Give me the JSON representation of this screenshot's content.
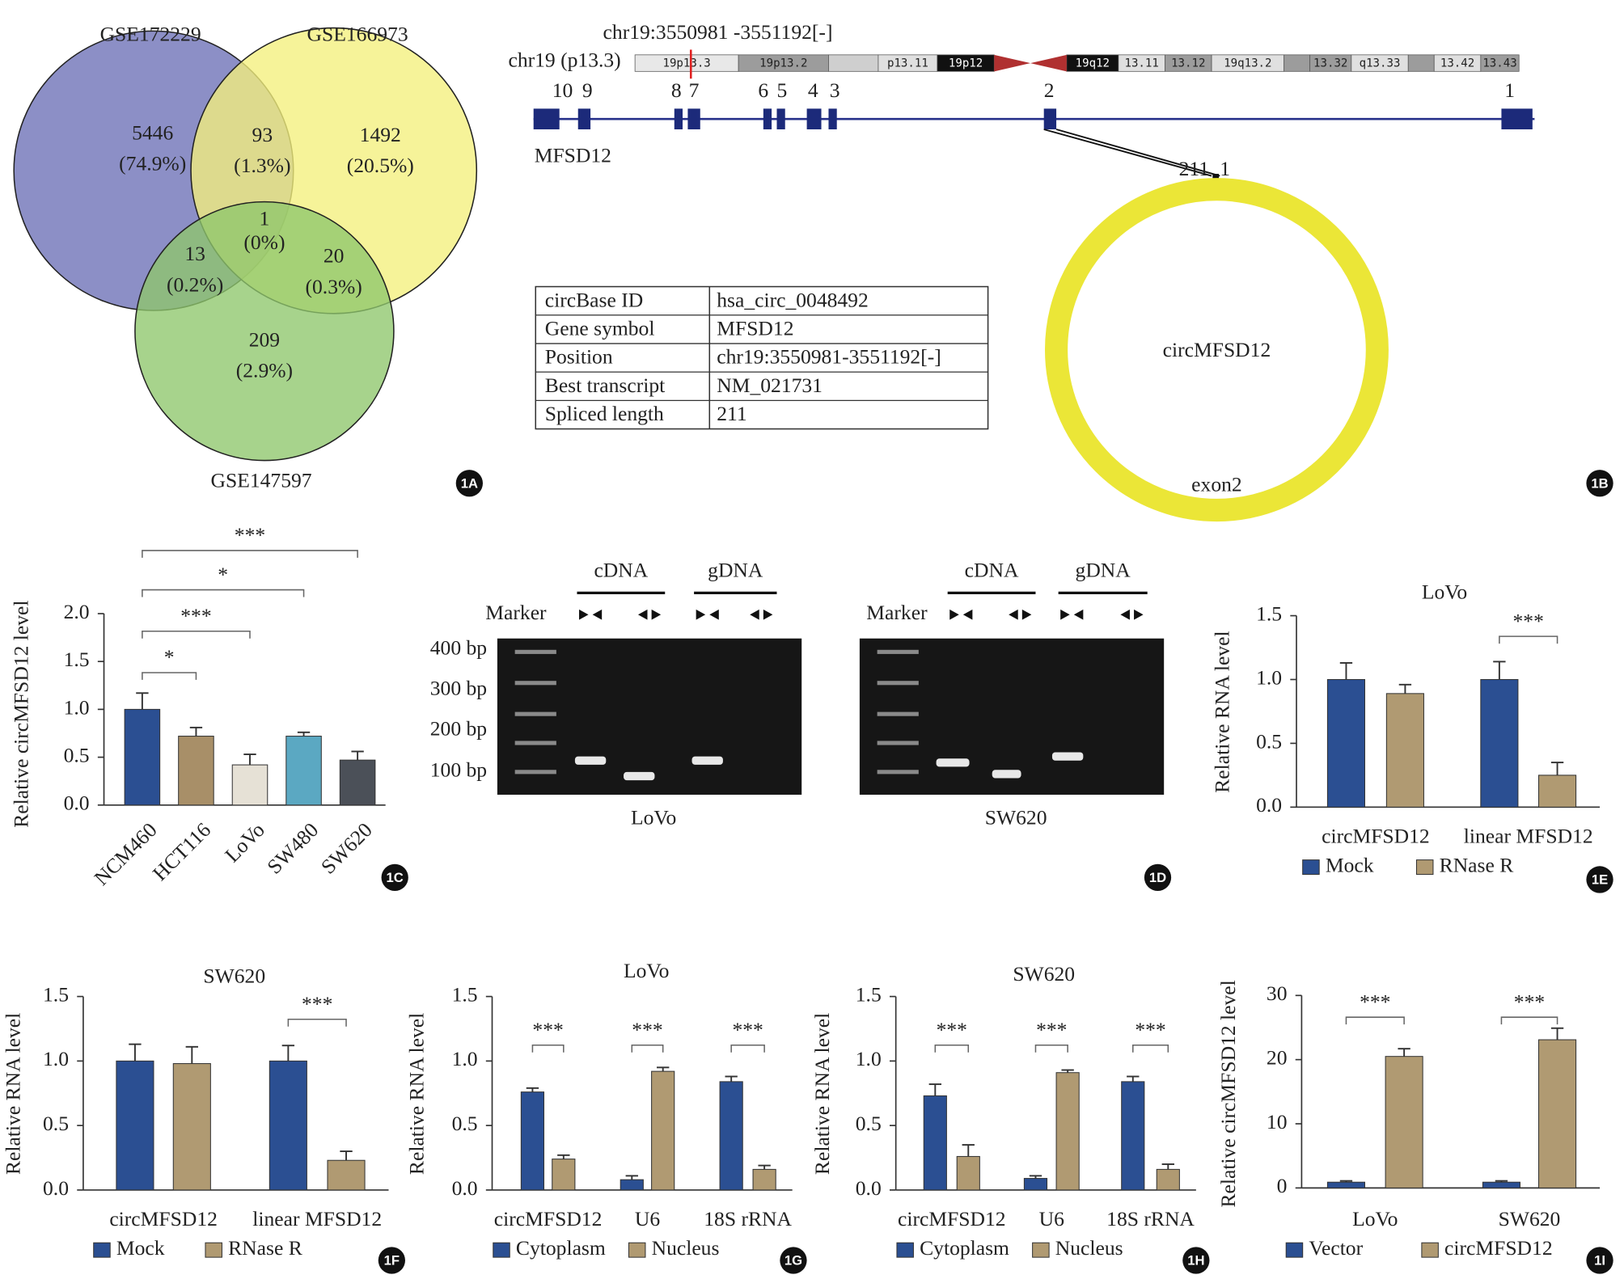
{
  "chart_data": [
    {
      "type": "venn",
      "sets": [
        {
          "name": "GSE172229",
          "color": "#6b6fb6"
        },
        {
          "name": "GSE166973",
          "color": "#f3ef7c"
        },
        {
          "name": "GSE147597",
          "color": "#8ec76c"
        }
      ],
      "counts": [
        5446,
        93,
        1492,
        1,
        13,
        20,
        209
      ],
      "shares": [
        "(74.9%)",
        "(1.3%)",
        "(20.5%)",
        "(0%)",
        "(0.2%)",
        "(0.3%)",
        "(2.9%)"
      ]
    },
    {
      "type": "bar",
      "ylabel": "Relative circMFSD12 level",
      "categories": [
        "NCM460",
        "HCT116",
        "LoVo",
        "SW480",
        "SW620"
      ],
      "values": [
        1.0,
        0.72,
        0.42,
        0.72,
        0.47
      ],
      "errors": [
        0.17,
        0.09,
        0.11,
        0.04,
        0.09
      ],
      "colors": [
        "#2b4f92",
        "#a88f68",
        "#e6e1d6",
        "#5ba8c2",
        "#4b5058"
      ],
      "significance": [
        null,
        "*",
        "***",
        "*",
        "***"
      ],
      "ylim": [
        0,
        2
      ],
      "yticks": [
        {
          "value": 0,
          "label": "0.0"
        },
        0.5,
        {
          "value": 1,
          "label": "1.0"
        },
        1.5,
        {
          "value": 2,
          "label": "2.0"
        }
      ]
    },
    {
      "type": "grouped-bar",
      "title": "LoVo",
      "ylabel": "Relative RNA level",
      "categories": [
        "circMFSD12",
        "linear MFSD12"
      ],
      "series": [
        {
          "name": "Mock",
          "color": "#2b4f92",
          "values": [
            1.0,
            1.0
          ],
          "errors": [
            0.13,
            0.14
          ]
        },
        {
          "name": "RNase R",
          "color": "#b09a72",
          "values": [
            0.89,
            0.25
          ],
          "errors": [
            0.07,
            0.1
          ]
        }
      ],
      "significance": [
        null,
        "***"
      ],
      "ylim": [
        0,
        1.5
      ],
      "yticks": [
        {
          "value": 0,
          "label": "0.0"
        },
        0.5,
        {
          "value": 1,
          "label": "1.0"
        },
        1.5
      ]
    },
    {
      "type": "grouped-bar",
      "title": "SW620",
      "ylabel": "Relative RNA level",
      "categories": [
        "circMFSD12",
        "linear MFSD12"
      ],
      "series": [
        {
          "name": "Mock",
          "color": "#2b4f92",
          "values": [
            1.0,
            1.0
          ],
          "errors": [
            0.13,
            0.12
          ]
        },
        {
          "name": "RNase R",
          "color": "#b09a72",
          "values": [
            0.98,
            0.23
          ],
          "errors": [
            0.13,
            0.07
          ]
        }
      ],
      "significance": [
        null,
        "***"
      ],
      "ylim": [
        0,
        1.5
      ],
      "yticks": [
        {
          "value": 0,
          "label": "0.0"
        },
        0.5,
        {
          "value": 1,
          "label": "1.0"
        },
        1.5
      ]
    },
    {
      "type": "grouped-bar",
      "title": "LoVo",
      "ylabel": "Relative RNA level",
      "categories": [
        "circMFSD12",
        "U6",
        "18S rRNA"
      ],
      "series": [
        {
          "name": "Cytoplasm",
          "color": "#2b4f92",
          "values": [
            0.76,
            0.08,
            0.84
          ],
          "errors": [
            0.03,
            0.03,
            0.04
          ]
        },
        {
          "name": "Nucleus",
          "color": "#b09a72",
          "values": [
            0.24,
            0.92,
            0.16
          ],
          "errors": [
            0.03,
            0.03,
            0.03
          ]
        }
      ],
      "significance": [
        "***",
        "***",
        "***"
      ],
      "ylim": [
        0,
        1.5
      ],
      "yticks": [
        {
          "value": 0,
          "label": "0.0"
        },
        0.5,
        {
          "value": 1,
          "label": "1.0"
        },
        1.5
      ]
    },
    {
      "type": "grouped-bar",
      "title": "SW620",
      "ylabel": "Relative RNA level",
      "categories": [
        "circMFSD12",
        "U6",
        "18S rRNA"
      ],
      "series": [
        {
          "name": "Cytoplasm",
          "color": "#2b4f92",
          "values": [
            0.73,
            0.09,
            0.84
          ],
          "errors": [
            0.09,
            0.02,
            0.04
          ]
        },
        {
          "name": "Nucleus",
          "color": "#b09a72",
          "values": [
            0.26,
            0.91,
            0.16
          ],
          "errors": [
            0.09,
            0.02,
            0.04
          ]
        }
      ],
      "significance": [
        "***",
        "***",
        "***"
      ],
      "ylim": [
        0,
        1.5
      ],
      "yticks": [
        {
          "value": 0,
          "label": "0.0"
        },
        0.5,
        {
          "value": 1,
          "label": "1.0"
        },
        1.5
      ]
    },
    {
      "type": "grouped-bar",
      "ylabel": "Relative circMFSD12 level",
      "categories": [
        "LoVo",
        "SW620"
      ],
      "series": [
        {
          "name": "Vector",
          "color": "#2b4f92",
          "values": [
            0.9,
            0.9
          ],
          "errors": [
            0.2,
            0.2
          ]
        },
        {
          "name": "circMFSD12",
          "color": "#b09a72",
          "values": [
            20.5,
            23.1
          ],
          "errors": [
            1.2,
            1.8
          ]
        }
      ],
      "significance": [
        "***",
        "***"
      ],
      "ylim": [
        0,
        30
      ],
      "yticks": [
        0,
        10,
        20,
        30
      ]
    }
  ],
  "gene_panel": {
    "coord": "chr19:3550981 -3551192[-]",
    "chrom": "chr19 (p13.3)",
    "bands": [
      "19p13.3",
      "19p13.2",
      "p13.11",
      "19p12",
      "19q12",
      "13.11",
      "13.12",
      "19q13.2",
      "13.32",
      "q13.33",
      "13.42",
      "13.43"
    ],
    "exons": [
      "10",
      "9",
      "8",
      "7",
      "6",
      "5",
      "4",
      "3",
      "2",
      "1"
    ],
    "gene": "MFSD12",
    "circ_ends": [
      "211",
      "1"
    ],
    "circ_name": "circMFSD12",
    "exon_label": "exon2",
    "table": {
      "rows": [
        [
          "circBase ID",
          "hsa_circ_0048492"
        ],
        [
          "Gene symbol",
          "MFSD12"
        ],
        [
          "Position",
          "chr19:3550981-3551192[-]"
        ],
        [
          "Best transcript",
          "NM_021731"
        ],
        [
          "Spliced length",
          "211"
        ]
      ]
    }
  },
  "gel_panel": {
    "marker": "Marker",
    "groups": [
      "cDNA",
      "gDNA"
    ],
    "sizes": [
      "400 bp",
      "300 bp",
      "200 bp",
      "100 bp"
    ],
    "cells": [
      "LoVo",
      "SW620"
    ]
  },
  "panel_labels": [
    "1A",
    "1B",
    "1C",
    "1D",
    "1E",
    "1F",
    "1G",
    "1H",
    "1I"
  ]
}
